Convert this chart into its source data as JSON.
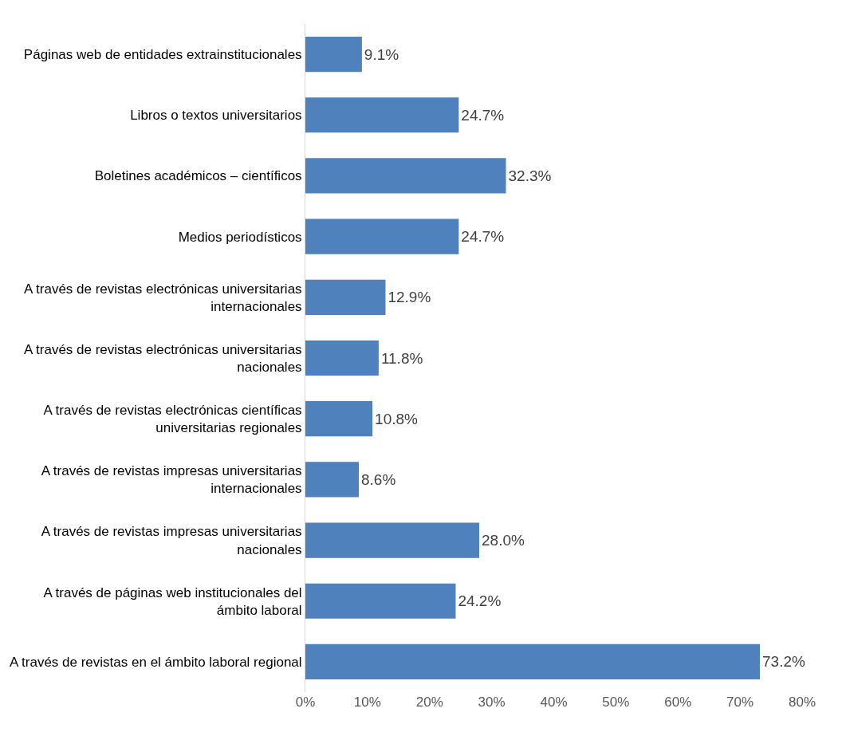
{
  "chart_data": {
    "type": "bar",
    "orientation": "horizontal",
    "categories": [
      "Páginas web de entidades extrainstitucionales",
      "Libros o textos universitarios",
      "Boletines académicos – científicos",
      "Medios periodísticos",
      "A través de revistas electrónicas universitarias\ninternacionales",
      "A través de revistas electrónicas universitarias\nnacionales",
      "A través de revistas electrónicas científicas\nuniversitarias regionales",
      "A través de revistas impresas universitarias\ninternacionales",
      "A través de revistas impresas universitarias\nnacionales",
      "A través de páginas web institucionales del\námbito laboral",
      "A través de revistas en el ámbito laboral regional"
    ],
    "values": [
      9.1,
      24.7,
      32.3,
      24.7,
      12.9,
      11.8,
      10.8,
      8.6,
      28.0,
      24.2,
      73.2
    ],
    "value_labels": [
      "9.1%",
      "24.7%",
      "32.3%",
      "24.7%",
      "12.9%",
      "11.8%",
      "10.8%",
      "8.6%",
      "28.0%",
      "24.2%",
      "73.2%"
    ],
    "color": "#4f81bd",
    "xlim": [
      0,
      80
    ],
    "xticks": [
      {
        "value": 0,
        "label": "0%"
      },
      {
        "value": 10,
        "label": "10%"
      },
      {
        "value": 20,
        "label": "20%"
      },
      {
        "value": 30,
        "label": "30%"
      },
      {
        "value": 40,
        "label": "40%"
      },
      {
        "value": 50,
        "label": "50%"
      },
      {
        "value": 60,
        "label": "60%"
      },
      {
        "value": 70,
        "label": "70%"
      },
      {
        "value": 80,
        "label": "80%"
      }
    ],
    "marker": "none"
  }
}
